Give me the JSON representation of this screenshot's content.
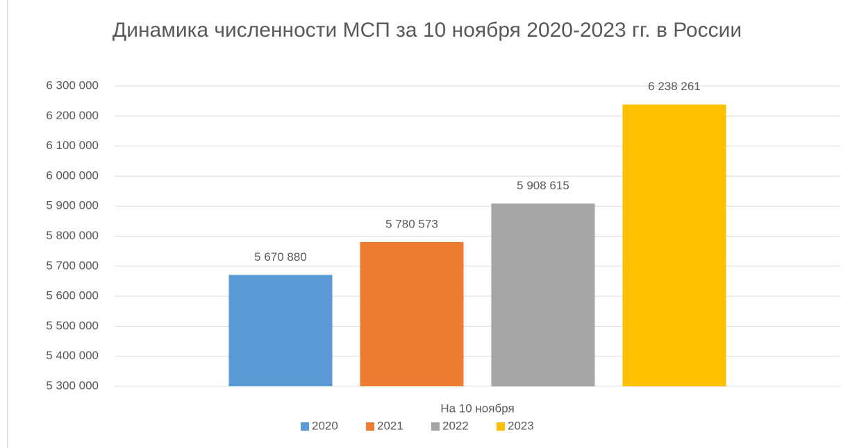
{
  "chart_data": {
    "type": "bar",
    "title": "Динамика численности МСП за 10 ноября 2020-2023 гг. в России",
    "categories": [
      "На 10 ноября"
    ],
    "series": [
      {
        "name": "2020",
        "color": "#5b9bd5",
        "values": [
          5670880
        ],
        "value_labels": [
          "5 670 880"
        ]
      },
      {
        "name": "2021",
        "color": "#ed7d31",
        "values": [
          5780573
        ],
        "value_labels": [
          "5 780 573"
        ]
      },
      {
        "name": "2022",
        "color": "#a5a5a5",
        "values": [
          5908615
        ],
        "value_labels": [
          "5 908 615"
        ]
      },
      {
        "name": "2023",
        "color": "#ffc000",
        "values": [
          6238261
        ],
        "value_labels": [
          "6 238 261"
        ]
      }
    ],
    "ylim": [
      5300000,
      6300000
    ],
    "yticks": [
      {
        "value": 5300000,
        "label": "5 300 000"
      },
      {
        "value": 5400000,
        "label": "5 400 000"
      },
      {
        "value": 5500000,
        "label": "5 500 000"
      },
      {
        "value": 5600000,
        "label": "5 600 000"
      },
      {
        "value": 5700000,
        "label": "5 700 000"
      },
      {
        "value": 5800000,
        "label": "5 800 000"
      },
      {
        "value": 5900000,
        "label": "5 900 000"
      },
      {
        "value": 6000000,
        "label": "6 000 000"
      },
      {
        "value": 6100000,
        "label": "6 100 000"
      },
      {
        "value": 6200000,
        "label": "6 200 000"
      },
      {
        "value": 6300000,
        "label": "6 300 000"
      }
    ],
    "grid": true,
    "legend": "bottom"
  }
}
